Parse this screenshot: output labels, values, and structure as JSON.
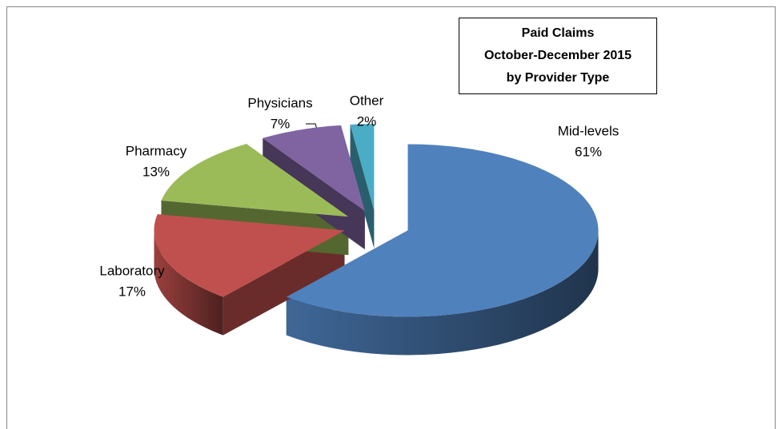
{
  "chart_data": {
    "type": "pie3d",
    "title": [
      "Paid Claims",
      "October-December 2015",
      "by Provider Type"
    ],
    "categories": [
      "Mid-levels",
      "Laboratory",
      "Pharmacy",
      "Physicians",
      "Other"
    ],
    "values": [
      61,
      17,
      13,
      7,
      2
    ],
    "value_labels": [
      "61%",
      "17%",
      "13%",
      "7%",
      "2%"
    ],
    "colors": [
      "#4f81bd",
      "#c0504d",
      "#9bbb59",
      "#8064a2",
      "#4bacc6"
    ]
  }
}
